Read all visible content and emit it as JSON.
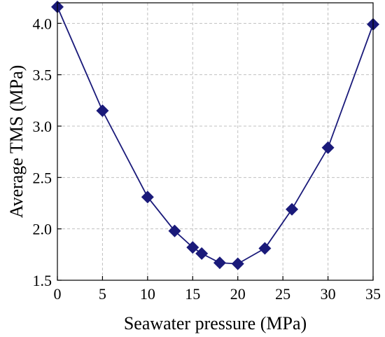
{
  "chart_data": {
    "type": "line",
    "title": "",
    "xlabel": "Seawater pressure (MPa)",
    "ylabel": "Average TMS (MPa)",
    "xlim": [
      0,
      35
    ],
    "ylim": [
      1.5,
      4.2
    ],
    "xticks": [
      "0",
      "5",
      "10",
      "15",
      "20",
      "25",
      "30",
      "35"
    ],
    "yticks": [
      "1.5",
      "2.0",
      "2.5",
      "3.0",
      "3.5",
      "4.0"
    ],
    "grid": true,
    "marker": "diamond",
    "series": [
      {
        "x": [
          0,
          5,
          10,
          13,
          15,
          16,
          18,
          20,
          23,
          26,
          30,
          35
        ],
        "y": [
          4.16,
          3.15,
          2.31,
          1.98,
          1.82,
          1.76,
          1.67,
          1.66,
          1.81,
          2.19,
          2.79,
          3.99
        ]
      }
    ],
    "colors": {
      "series": "#1a1a7a",
      "grid": "#c0c0c0",
      "axis": "#000000"
    }
  }
}
